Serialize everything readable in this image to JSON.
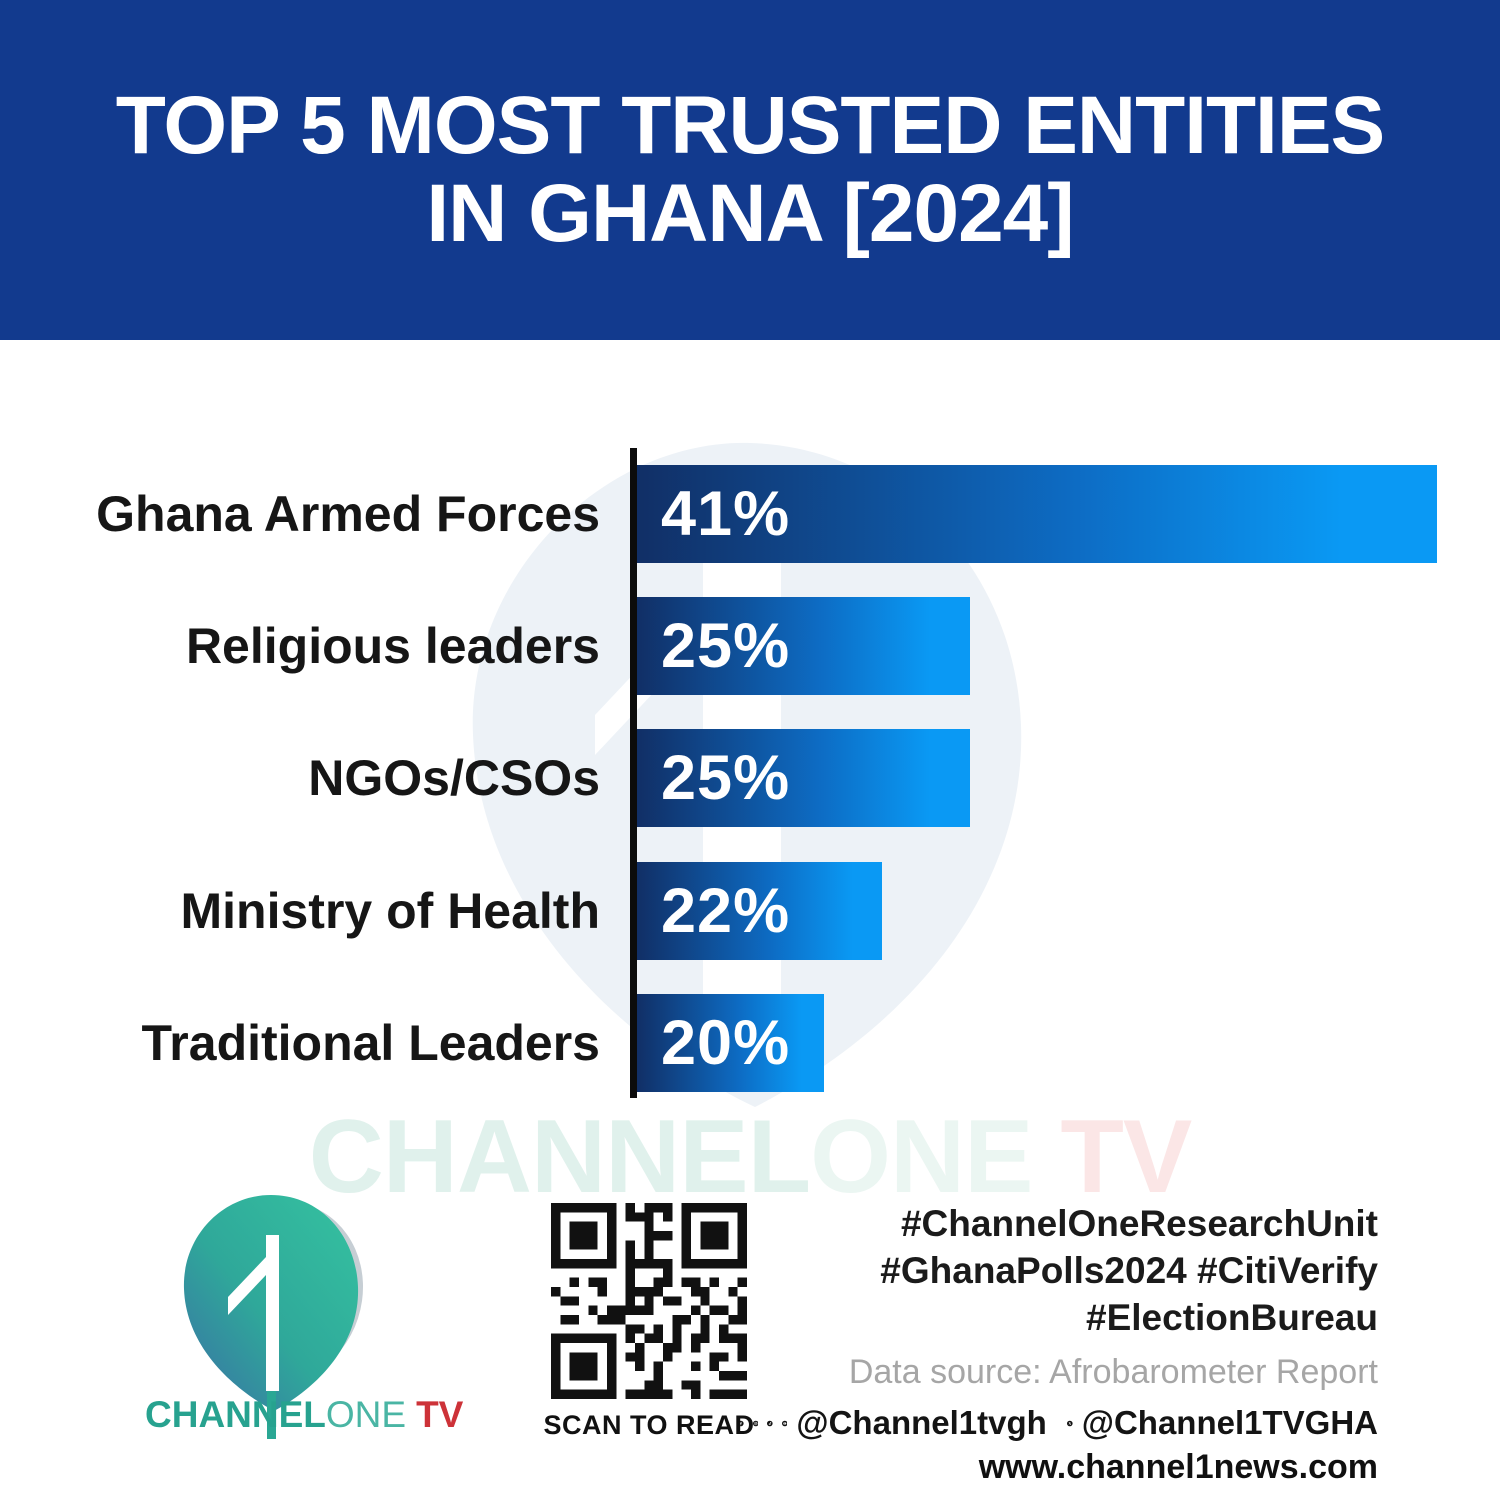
{
  "header": {
    "title_line1": "TOP 5 MOST TRUSTED ENTITIES",
    "title_line2": "IN GHANA [2024]",
    "bg_color": "#123a8e"
  },
  "chart_data": {
    "type": "bar",
    "orientation": "horizontal",
    "title": "Top 5 most trusted entities in Ghana [2024]",
    "categories": [
      "Ghana Armed Forces",
      "Religious leaders",
      "NGOs/CSOs",
      "Ministry of Health",
      "Traditional Leaders"
    ],
    "values": [
      41,
      25,
      25,
      22,
      20
    ],
    "value_labels": [
      "41%",
      "25%",
      "25%",
      "22%",
      "20%"
    ],
    "unit": "%",
    "xlabel": "",
    "ylabel": "",
    "grid": false,
    "legend": false,
    "bar_color_gradient": [
      "#112f66",
      "#0a99f4"
    ],
    "axis_line_color": "#0c0c0c",
    "label_color": "#161616"
  },
  "watermark": {
    "part1": "CHANNEL",
    "part2": "ONE",
    "part3": " TV"
  },
  "footer": {
    "logo": {
      "part1": "CHANNEL",
      "part2": "ONE",
      "part3": "TV",
      "mark": "channel-one-teardrop-1-logo"
    },
    "qr_caption": "SCAN TO READ",
    "right": {
      "hashtags_line1": "#ChannelOneResearchUnit",
      "hashtags_line2": "#GhanaPolls2024 #CitiVerify",
      "hashtags_line3": "#ElectionBureau",
      "data_source": "Data source: Afrobarometer Report",
      "social_icons": [
        "facebook",
        "instagram",
        "tiktok",
        "youtube"
      ],
      "handle_social": "@Channel1tvgh",
      "x_icon": "x-twitter",
      "handle_x": "@Channel1TVGHA",
      "website": "www.channel1news.com"
    }
  }
}
